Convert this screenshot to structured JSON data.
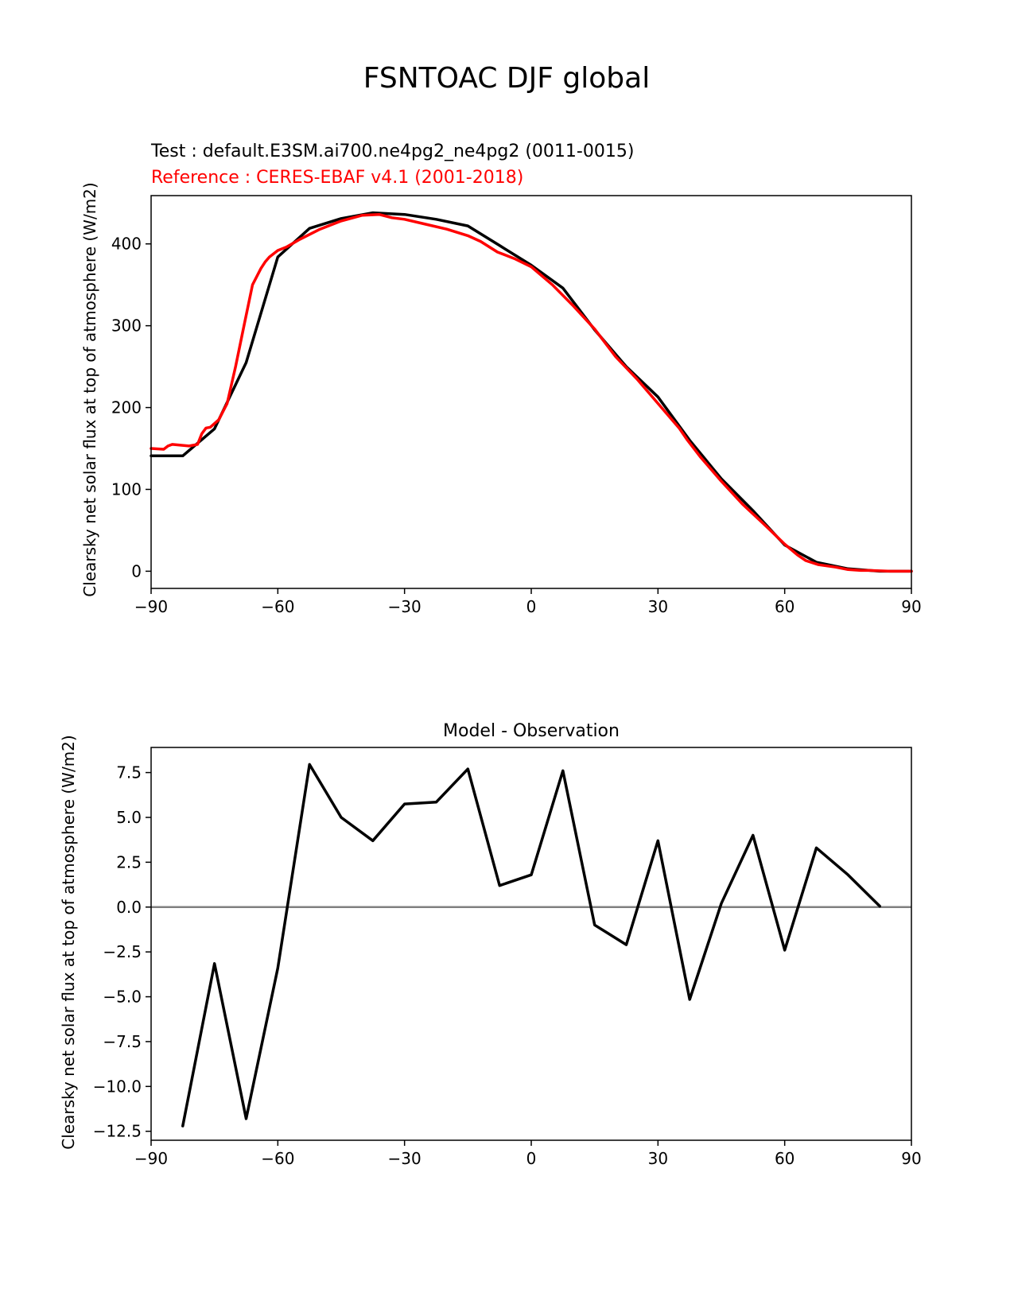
{
  "figure": {
    "suptitle": "FSNTOAC DJF global"
  },
  "chart_data": [
    {
      "type": "line",
      "title_left_test": "Test : default.E3SM.ai700.ne4pg2_ne4pg2 (0011-0015)",
      "title_left_reference": "Reference : CERES-EBAF v4.1 (2001-2018)",
      "xlabel": "",
      "ylabel": "Clearsky net solar flux at top of atmosphere (W/m2)",
      "xlim": [
        -90,
        90
      ],
      "ylim": [
        -21,
        459
      ],
      "xticks": [
        -90,
        -60,
        -30,
        0,
        30,
        60,
        90
      ],
      "xtick_labels": [
        "−90",
        "−60",
        "−30",
        "0",
        "30",
        "60",
        "90"
      ],
      "yticks": [
        0,
        100,
        200,
        300,
        400
      ],
      "ytick_labels": [
        "0",
        "100",
        "200",
        "300",
        "400"
      ],
      "grid": false,
      "series": [
        {
          "color": "#000000",
          "x": [
            -90,
            -82.5,
            -75,
            -67.5,
            -60,
            -52.5,
            -45,
            -37.5,
            -30,
            -22.5,
            -15,
            -7.5,
            0,
            7.5,
            15,
            22.5,
            30,
            37.5,
            45,
            52.5,
            60,
            67.5,
            75,
            82.5,
            90
          ],
          "y": [
            141,
            141,
            174,
            255,
            384,
            419,
            431,
            438,
            436,
            430,
            422,
            398,
            374,
            346,
            295,
            250,
            213,
            160,
            113,
            74,
            32,
            11,
            3,
            0,
            0
          ]
        },
        {
          "color": "#ff0000",
          "x": [
            -90,
            -87,
            -86,
            -85,
            -83,
            -81,
            -79,
            -78,
            -77,
            -76,
            -74,
            -72,
            -70,
            -68,
            -66,
            -64,
            -63,
            -62,
            -61,
            -60,
            -58,
            -55,
            -50,
            -45,
            -40,
            -36,
            -33,
            -30,
            -25,
            -20,
            -15,
            -12,
            -8,
            -4,
            0,
            5,
            10,
            15,
            20,
            25,
            30,
            35,
            37,
            40,
            45,
            50,
            55,
            60,
            63,
            65,
            68,
            72,
            75,
            78,
            80,
            85,
            90
          ],
          "y": [
            150,
            149,
            153,
            155,
            154,
            153,
            155,
            168,
            175,
            176,
            185,
            205,
            250,
            300,
            350,
            370,
            378,
            384,
            388,
            392,
            396,
            405,
            418,
            428,
            435,
            436,
            432,
            430,
            424,
            418,
            410,
            403,
            390,
            382,
            372,
            350,
            324,
            296,
            262,
            235,
            205,
            175,
            160,
            140,
            110,
            82,
            58,
            33,
            20,
            13,
            8,
            5,
            2,
            1,
            1,
            0,
            0
          ]
        }
      ]
    },
    {
      "type": "line",
      "title": "Model - Observation",
      "xlabel": "",
      "ylabel": "Clearsky net solar flux at top of atmosphere (W/m2)",
      "xlim": [
        -90,
        90
      ],
      "ylim": [
        -13.0,
        8.9
      ],
      "xticks": [
        -90,
        -60,
        -30,
        0,
        30,
        60,
        90
      ],
      "xtick_labels": [
        "−90",
        "−60",
        "−30",
        "0",
        "30",
        "60",
        "90"
      ],
      "yticks": [
        7.5,
        5.0,
        2.5,
        0.0,
        -2.5,
        -5.0,
        -7.5,
        -10.0,
        -12.5
      ],
      "ytick_labels": [
        "7.5",
        "5.0",
        "2.5",
        "0.0",
        "−2.5",
        "−5.0",
        "−7.5",
        "−10.0",
        "−12.5"
      ],
      "zero_line_color": "#808080",
      "grid": false,
      "series": [
        {
          "color": "#000000",
          "x": [
            -82.5,
            -75,
            -67.5,
            -60,
            -52.5,
            -45,
            -37.5,
            -30,
            -22.5,
            -15,
            -7.5,
            0,
            7.5,
            15,
            22.5,
            30,
            37.5,
            45,
            52.5,
            60,
            67.5,
            75,
            82.5
          ],
          "y": [
            -12.2,
            -3.15,
            -11.8,
            -3.4,
            7.95,
            5.0,
            3.7,
            5.75,
            5.85,
            7.7,
            1.2,
            1.8,
            7.6,
            -1.0,
            -2.1,
            3.7,
            -5.15,
            0.2,
            4.0,
            -2.4,
            3.3,
            1.8,
            0.05
          ]
        }
      ]
    }
  ]
}
